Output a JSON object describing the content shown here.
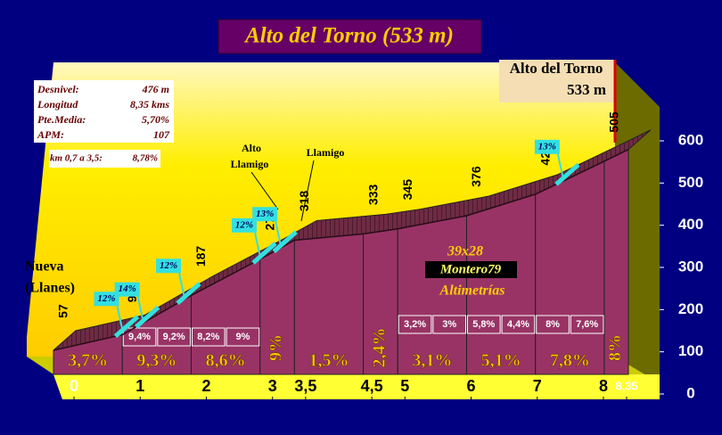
{
  "chart_data": {
    "type": "profile",
    "title": "Alto del Torno (533 m)",
    "summit_name": "Alto del Torno",
    "x": [
      0,
      1,
      2,
      3,
      3.5,
      4.5,
      5,
      6,
      7,
      8,
      8.35
    ],
    "values": [
      57,
      94,
      187,
      273,
      318,
      333,
      345,
      376,
      427,
      505,
      533
    ],
    "value_labels": [
      "57",
      "94",
      "187",
      "273",
      "318",
      "333",
      "345",
      "376",
      "427",
      "505",
      "533 m"
    ],
    "xlim": [
      0,
      8.35
    ],
    "ylim": [
      0,
      600
    ],
    "xticks": [
      0,
      1,
      2,
      3,
      {
        "value": 3.5,
        "label": "3,5"
      },
      {
        "value": 4.5,
        "label": "4,5"
      },
      5,
      6,
      7,
      8,
      {
        "value": 8.35,
        "label": "8,35"
      }
    ],
    "yticks": [
      0,
      100,
      200,
      300,
      400,
      500,
      600
    ],
    "grades": {
      "values": [
        3.7,
        9.3,
        8.6,
        9,
        1.5,
        2.4,
        3.1,
        5.1,
        7.8,
        8
      ],
      "value_labels": [
        "3,7%",
        "9,3%",
        "8,6%",
        "9%",
        "1,5%",
        "2,4%",
        "3,1%",
        "5,1%",
        "7,8%",
        "8%"
      ]
    },
    "sub_grades": {
      "x": [
        1,
        1.5,
        2,
        2.5,
        5,
        5.5,
        6,
        6.5,
        7,
        7.5
      ],
      "values": [
        9.4,
        9.2,
        8.2,
        9,
        3.2,
        3,
        5.8,
        4.4,
        8,
        7.6
      ],
      "value_labels": [
        "9,4%",
        "9,2%",
        "8,2%",
        "9%",
        "3,2%",
        "3%",
        "5,8%",
        "4,4%",
        "8%",
        "7,6%"
      ]
    },
    "ramps": {
      "x": [
        0.9,
        1.2,
        1.8,
        2.9,
        3.2,
        7.3
      ],
      "values": [
        12,
        14,
        12,
        12,
        13,
        13
      ],
      "value_labels": [
        "12%",
        "14%",
        "12%",
        "12%",
        "13%",
        "13%"
      ]
    },
    "stats": [
      {
        "label": "Desnivel:",
        "value": "476 m"
      },
      {
        "label": "Longitud",
        "value": "8,35 kms"
      },
      {
        "label": "Pte.Media:",
        "value": "5,70%"
      },
      {
        "label": "APM:",
        "value": "107"
      }
    ],
    "steep_section": {
      "label": "km 0,7 a 3,5:",
      "value": "8,78%"
    },
    "start_name": [
      "Nueva",
      "(Llanes)"
    ],
    "pass_name": [
      "Alto",
      "Llamigo"
    ],
    "village_name": "Llamigo",
    "credits": {
      "gear": "39x28",
      "author": "Montero79",
      "site": "Altimetrías"
    }
  }
}
